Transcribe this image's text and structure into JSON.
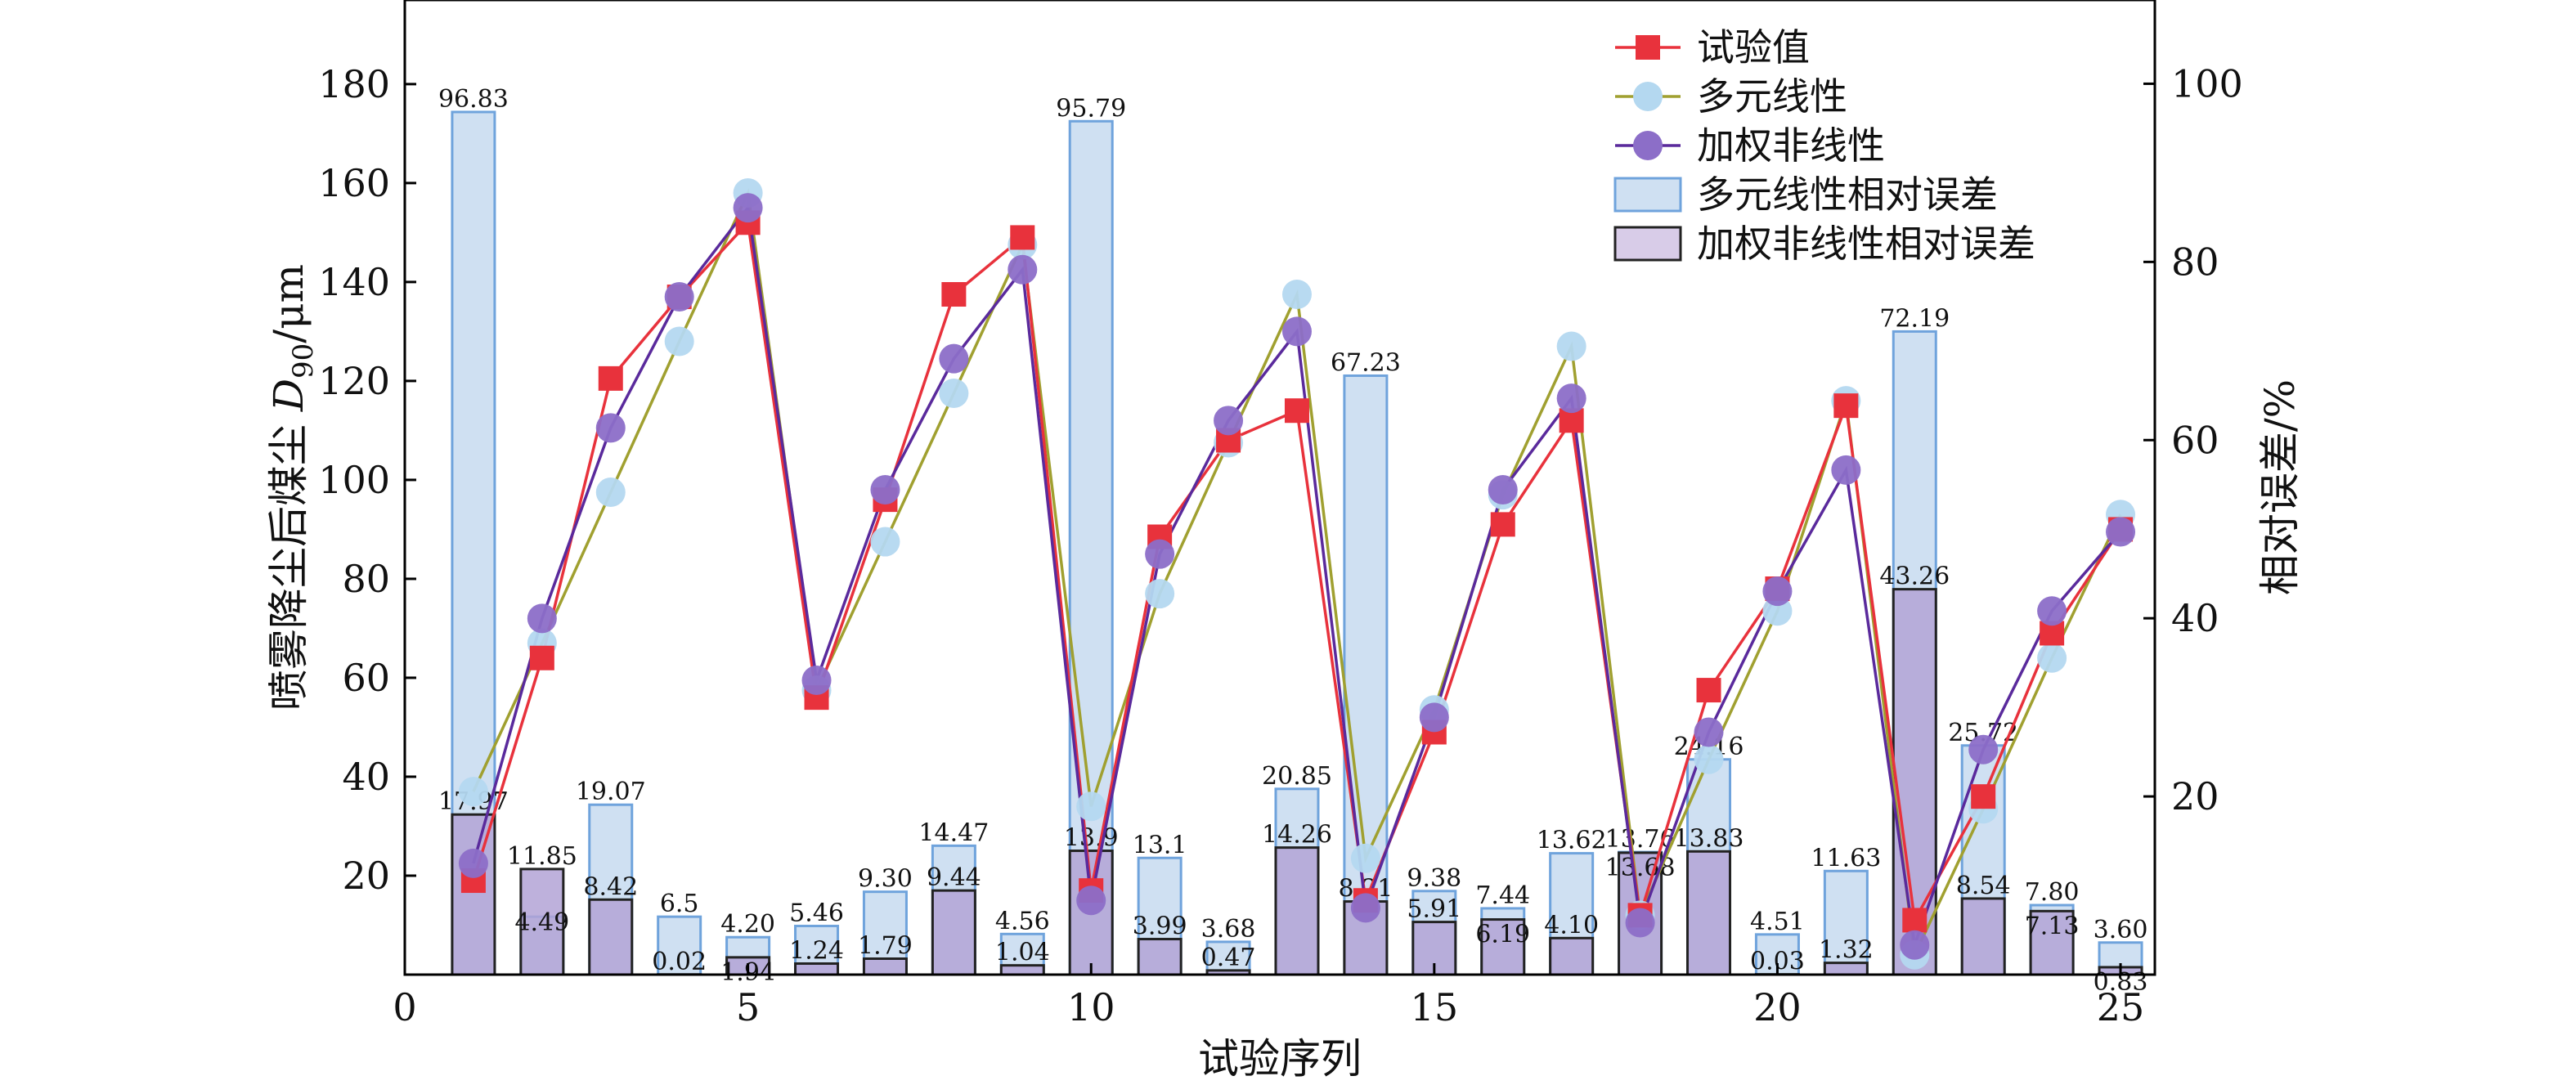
{
  "chart_data": {
    "type": "bar",
    "xlabel": "试验序列",
    "ylabel_left_prefix": "喷雾降尘后煤尘 ",
    "ylabel_left_var": "D",
    "ylabel_left_sub": "90",
    "ylabel_left_suffix": "/μm",
    "ylabel_right": "相对误差/%",
    "xlim": [
      0,
      25.5
    ],
    "ylim_left": [
      0,
      197
    ],
    "ylim_right": [
      0,
      109.4
    ],
    "x_ticks": [
      0,
      5,
      10,
      15,
      20,
      25
    ],
    "y_left_ticks": [
      20,
      40,
      60,
      80,
      100,
      120,
      140,
      160,
      180
    ],
    "y_right_ticks": [
      20,
      40,
      60,
      80,
      100
    ],
    "x": [
      1,
      2,
      3,
      4,
      5,
      6,
      7,
      8,
      9,
      10,
      11,
      12,
      13,
      14,
      15,
      16,
      17,
      18,
      19,
      20,
      21,
      22,
      23,
      24,
      25
    ],
    "legend_position": "top-right",
    "line_series": [
      {
        "name": "试验值",
        "color": "#e8323c",
        "marker": "square",
        "values": [
          19,
          64,
          120.5,
          137,
          152,
          56,
          96,
          137.5,
          149,
          17,
          88.5,
          108,
          114,
          15,
          49,
          91,
          112,
          12,
          57.5,
          78,
          115,
          11,
          36,
          69,
          90
        ]
      },
      {
        "name": "多元线性",
        "color": "#a0a030",
        "marker": "circle",
        "marker_color": "#b4d8f0",
        "values": [
          37,
          67,
          97.5,
          128,
          158,
          57.5,
          87.5,
          117.5,
          147.5,
          34,
          77,
          107.5,
          137.5,
          23.5,
          53.5,
          97,
          127,
          12,
          43.5,
          73.5,
          116,
          4,
          33.5,
          64,
          93
        ]
      },
      {
        "name": "加权非线性",
        "color": "#5a2a9c",
        "marker": "circle",
        "marker_color": "#8c6ec8",
        "values": [
          22.5,
          72,
          110.5,
          137,
          155,
          59.5,
          98,
          124.5,
          142.5,
          15,
          85,
          112,
          130,
          13.5,
          52,
          98,
          116.5,
          10.5,
          49,
          77.5,
          102,
          6,
          45.5,
          73.5,
          89.5
        ]
      }
    ],
    "bar_series": [
      {
        "name": "多元线性相对误差",
        "fill": "#cfe0f2",
        "stroke": "#6fa3dc",
        "values": [
          96.83,
          6.5,
          19.07,
          6.5,
          4.2,
          5.46,
          9.3,
          14.47,
          4.56,
          95.79,
          13.1,
          3.68,
          20.85,
          67.23,
          9.38,
          7.44,
          13.62,
          13.76,
          24.16,
          4.51,
          11.63,
          72.19,
          25.72,
          7.8,
          3.6
        ],
        "labels": [
          "96.83",
          "",
          "19.07",
          "6.5",
          "4.20",
          "5.46",
          "9.30",
          "14.47",
          "4.56",
          "95.79",
          "13.1",
          "3.68",
          "20.85",
          "67.23",
          "9.38",
          "7.44",
          "13.62",
          "13.76",
          "24.16",
          "4.51",
          "11.63",
          "72.19",
          "25.72",
          "7.80",
          "3.60"
        ]
      },
      {
        "name": "加权非线性相对误差",
        "fill": "#b3a3d6",
        "fill_legend": "#d8cce8",
        "stroke": "#222222",
        "values": [
          17.97,
          11.85,
          8.42,
          0.02,
          1.94,
          1.24,
          1.79,
          9.44,
          1.04,
          13.9,
          3.99,
          0.47,
          14.26,
          8.21,
          5.91,
          6.19,
          4.1,
          13.68,
          13.83,
          0.03,
          1.32,
          43.26,
          8.54,
          7.13,
          0.83
        ],
        "labels": [
          "17.97",
          "11.85",
          "8.42",
          "0.02",
          "1.94",
          "1.24",
          "1.79",
          "9.44",
          "1.04",
          "13.9",
          "3.99",
          "0.47",
          "14.26",
          "8.21",
          "5.91",
          "6.19",
          "4.10",
          "13.68",
          "13.83",
          "0.03",
          "1.32",
          "43.26",
          "8.54",
          "7.13",
          "0.83"
        ],
        "extra_labels": {
          "2": "4.49"
        }
      }
    ]
  }
}
